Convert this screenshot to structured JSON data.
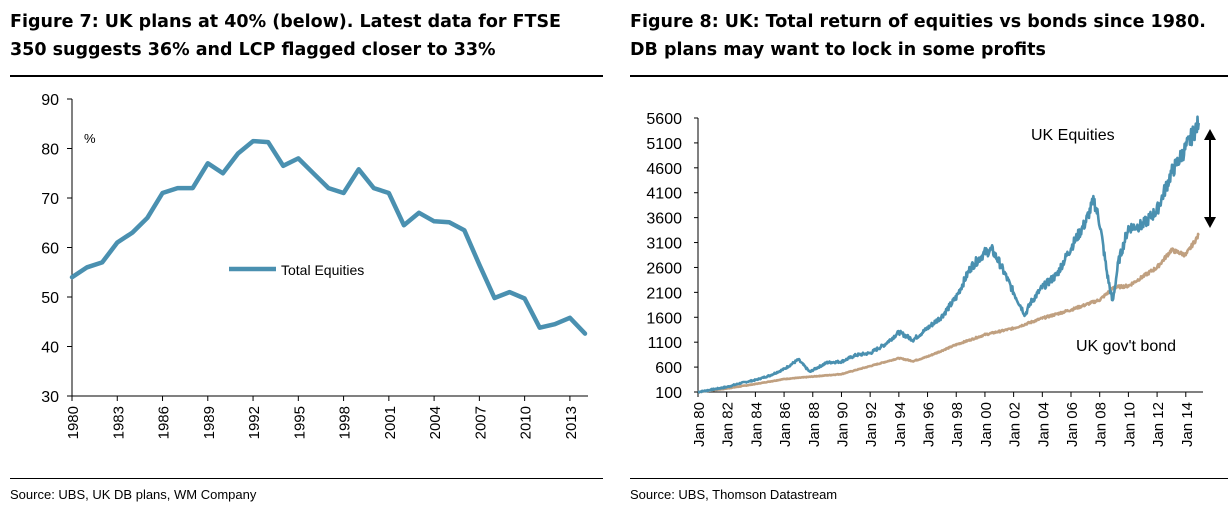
{
  "left": {
    "title": "Figure 7: UK plans at 40% (below). Latest data for FTSE 350 suggests 36% and LCP flagged closer to 33%",
    "source": "Source:  UBS, UK DB plans, WM Company"
  },
  "right": {
    "title": "Figure 8: UK: Total return of equities vs bonds since 1980. DB plans may want to lock in some profits",
    "source": "Source:  UBS, Thomson Datastream"
  },
  "colors": {
    "equities": "#4a90b0",
    "bonds": "#c0a080",
    "axis": "#000000"
  },
  "chart_data": [
    {
      "type": "line",
      "title": "Figure 7: UK plans at 40% (below). Latest data for FTSE 350 suggests 36% and LCP flagged closer to 33%",
      "unit_label": "%",
      "xlabel": "",
      "ylabel": "",
      "ylim": [
        30,
        90
      ],
      "yticks": [
        30,
        40,
        50,
        60,
        70,
        80,
        90
      ],
      "xticks": [
        "1980",
        "1983",
        "1986",
        "1989",
        "1992",
        "1995",
        "1998",
        "2001",
        "2004",
        "2007",
        "2010",
        "2013"
      ],
      "legend": "middle",
      "series": [
        {
          "name": "Total Equities",
          "x": [
            1980,
            1981,
            1982,
            1983,
            1984,
            1985,
            1986,
            1987,
            1988,
            1989,
            1990,
            1991,
            1992,
            1993,
            1994,
            1995,
            1996,
            1997,
            1998,
            1999,
            2000,
            2001,
            2002,
            2003,
            2004,
            2005,
            2006,
            2007,
            2008,
            2009,
            2010,
            2011,
            2012,
            2013,
            2014
          ],
          "values": [
            54,
            56,
            57,
            61,
            63,
            66,
            71,
            72,
            72,
            77,
            75,
            79,
            81.5,
            81.3,
            76.5,
            78,
            75,
            72,
            71,
            75.8,
            72,
            71,
            64.5,
            67,
            65.3,
            65.1,
            63.5,
            56.5,
            49.8,
            51,
            49.7,
            43.8,
            44.5,
            45.8,
            42.6
          ]
        }
      ]
    },
    {
      "type": "line",
      "title": "Figure 8: UK: Total return of equities vs bonds since 1980. DB plans may want to lock in some profits",
      "xlabel": "",
      "ylabel": "",
      "ylim": [
        100,
        5600
      ],
      "yticks": [
        100,
        600,
        1100,
        1600,
        2100,
        2600,
        3100,
        3600,
        4100,
        4600,
        5100,
        5600
      ],
      "xticks": [
        "Jan 80",
        "Jan 82",
        "Jan 84",
        "Jan 86",
        "Jan 88",
        "Jan 90",
        "Jan 92",
        "Jan 94",
        "Jan 96",
        "Jan 98",
        "Jan 00",
        "Jan 02",
        "Jan 04",
        "Jan 06",
        "Jan 08",
        "Jan 10",
        "Jan 12",
        "Jan 14"
      ],
      "annotations": [
        "UK Equities",
        "UK gov't bond"
      ],
      "series": [
        {
          "name": "UK Equities",
          "x": [
            1980,
            1981,
            1982,
            1983,
            1984,
            1985,
            1986,
            1987,
            1987.8,
            1988,
            1989,
            1990,
            1991,
            1992,
            1993,
            1994,
            1995,
            1996,
            1997,
            1998,
            1999,
            2000,
            2000.5,
            2001,
            2002,
            2002.8,
            2003.2,
            2004,
            2005,
            2006,
            2007,
            2007.6,
            2008,
            2008.5,
            2008.9,
            2009.3,
            2010,
            2011,
            2012,
            2013,
            2014,
            2014.9
          ],
          "values": [
            100,
            150,
            200,
            280,
            340,
            430,
            560,
            750,
            500,
            540,
            690,
            710,
            840,
            880,
            1050,
            1300,
            1150,
            1380,
            1620,
            2000,
            2600,
            2900,
            2950,
            2700,
            2100,
            1650,
            1900,
            2200,
            2450,
            3000,
            3500,
            3950,
            3500,
            2500,
            1900,
            2700,
            3400,
            3450,
            3750,
            4500,
            5000,
            5500
          ]
        },
        {
          "name": "UK gov't bond",
          "x": [
            1980,
            1982,
            1984,
            1986,
            1988,
            1990,
            1992,
            1994,
            1995,
            1996,
            1998,
            2000,
            2002,
            2004,
            2006,
            2008,
            2009,
            2010,
            2012,
            2013,
            2014,
            2014.9
          ],
          "values": [
            100,
            170,
            260,
            360,
            410,
            460,
            620,
            780,
            720,
            810,
            1050,
            1250,
            1380,
            1580,
            1750,
            1950,
            2200,
            2230,
            2600,
            2950,
            2850,
            3250
          ]
        }
      ]
    }
  ]
}
